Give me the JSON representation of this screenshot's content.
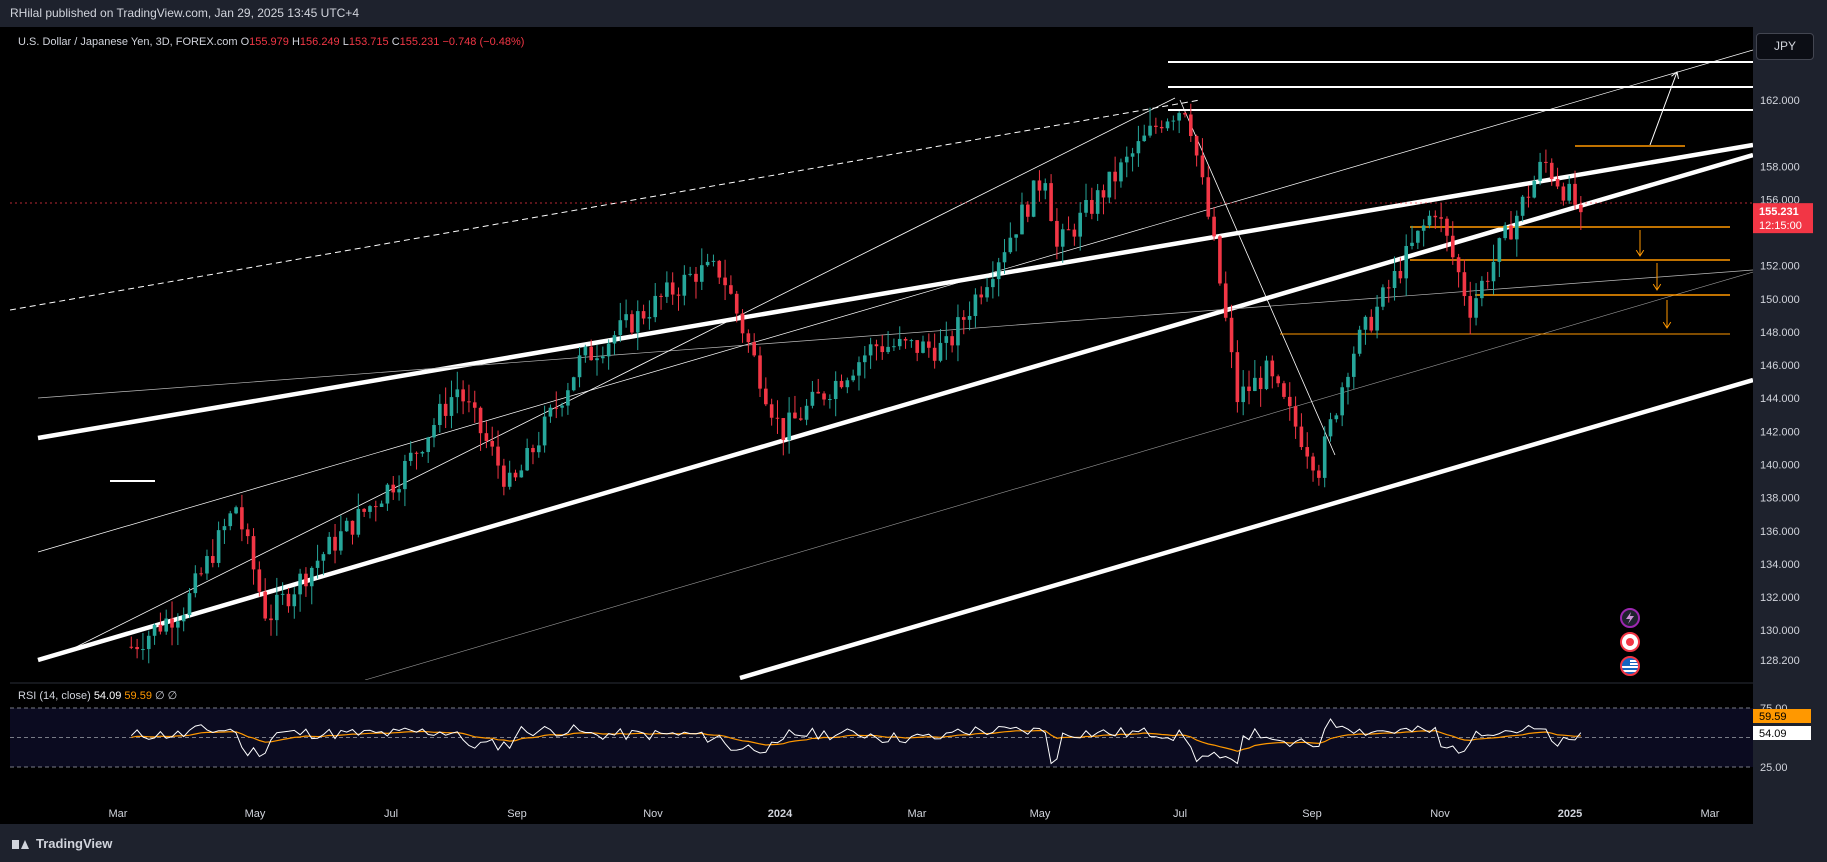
{
  "header": {
    "publish_text": "RHilal published on TradingView.com, Jan 29, 2025 13:45 UTC+4"
  },
  "legend": {
    "symbol": "U.S. Dollar / Japanese Yen, 3D, FOREX.com",
    "o_label": "O",
    "o": "155.979",
    "h_label": "H",
    "h": "156.249",
    "l_label": "L",
    "l": "153.715",
    "c_label": "C",
    "c": "155.231",
    "change": "−0.748 (−0.48%)"
  },
  "currency_button": "JPY",
  "price_badge": {
    "price": "155.231",
    "countdown": "12:15:00"
  },
  "rsi": {
    "label": "RSI (14, close)",
    "value": "54.09",
    "ma": "59.59",
    "extra1": "∅",
    "extra2": "∅",
    "badge_ma": "59.59",
    "badge_value": "54.09"
  },
  "brand": "TradingView",
  "colors": {
    "up": "#26a69a",
    "down": "#f23645",
    "rsi_line": "#ffffff",
    "rsi_ma": "#ff9800",
    "level": "#ff9800",
    "channel": "#ffffff"
  },
  "icons": [
    "lightning-icon",
    "target-icon",
    "us-flag-icon"
  ],
  "chart_data": {
    "type": "candlestick",
    "title": "U.S. Dollar / Japanese Yen, 3D, FOREX.com",
    "ylim": [
      127.5,
      165.0
    ],
    "yticks": [
      128.2,
      130,
      132,
      134,
      136,
      138,
      140,
      142,
      144,
      146,
      148,
      150,
      152,
      156,
      158,
      162
    ],
    "ytick_labels": [
      "128.200",
      "130.000",
      "132.000",
      "134.000",
      "136.000",
      "138.000",
      "140.000",
      "142.000",
      "144.000",
      "146.000",
      "148.000",
      "150.000",
      "152.000",
      "156.000",
      "158.000",
      "162.000"
    ],
    "xticks": [
      "Mar",
      "May",
      "Jul",
      "Sep",
      "Nov",
      "2024",
      "Mar",
      "May",
      "Jul",
      "Sep",
      "Nov",
      "2025",
      "Mar"
    ],
    "last_price": 155.231,
    "close_path": [
      {
        "t": "2023-01-13",
        "v": 129.0
      },
      {
        "t": "2023-02-10",
        "v": 131.5
      },
      {
        "t": "2023-03-08",
        "v": 137.5
      },
      {
        "t": "2023-03-24",
        "v": 130.7
      },
      {
        "t": "2023-04-20",
        "v": 134.4
      },
      {
        "t": "2023-05-31",
        "v": 139.3
      },
      {
        "t": "2023-06-30",
        "v": 144.6
      },
      {
        "t": "2023-07-28",
        "v": 138.5
      },
      {
        "t": "2023-09-01",
        "v": 146.2
      },
      {
        "t": "2023-10-31",
        "v": 151.6
      },
      {
        "t": "2023-11-13",
        "v": 151.7
      },
      {
        "t": "2023-12-14",
        "v": 141.9
      },
      {
        "t": "2024-01-31",
        "v": 147.2
      },
      {
        "t": "2024-03-08",
        "v": 147.0
      },
      {
        "t": "2024-04-29",
        "v": 157.8
      },
      {
        "t": "2024-05-03",
        "v": 152.9
      },
      {
        "t": "2024-06-28",
        "v": 161.0
      },
      {
        "t": "2024-07-10",
        "v": 161.7
      },
      {
        "t": "2024-07-25",
        "v": 152.5
      },
      {
        "t": "2024-08-05",
        "v": 144.0
      },
      {
        "t": "2024-08-20",
        "v": 145.5
      },
      {
        "t": "2024-09-16",
        "v": 139.8
      },
      {
        "t": "2024-10-02",
        "v": 146.5
      },
      {
        "t": "2024-10-31",
        "v": 152.5
      },
      {
        "t": "2024-11-15",
        "v": 155.5
      },
      {
        "t": "2024-12-03",
        "v": 149.5
      },
      {
        "t": "2025-01-10",
        "v": 158.3
      },
      {
        "t": "2025-01-29",
        "v": 155.231
      }
    ],
    "levels": [
      {
        "price": 153.9,
        "color": "#ff9800"
      },
      {
        "price": 151.9,
        "color": "#ff9800"
      },
      {
        "price": 149.6,
        "color": "#ff9800"
      },
      {
        "price": 147.0,
        "color": "#ff9800"
      },
      {
        "price": 158.8,
        "color": "#ff9800"
      },
      {
        "price": 161.7,
        "color": "#ffffff"
      },
      {
        "price": 163.0,
        "color": "#ffffff"
      },
      {
        "price": 164.4,
        "color": "#ffffff"
      }
    ],
    "rsi": {
      "ylim": [
        25,
        75
      ],
      "ticks": [
        25,
        75
      ],
      "tick_labels": [
        "25.00",
        "75.00"
      ],
      "value": 54.09,
      "ma": 59.59
    }
  }
}
